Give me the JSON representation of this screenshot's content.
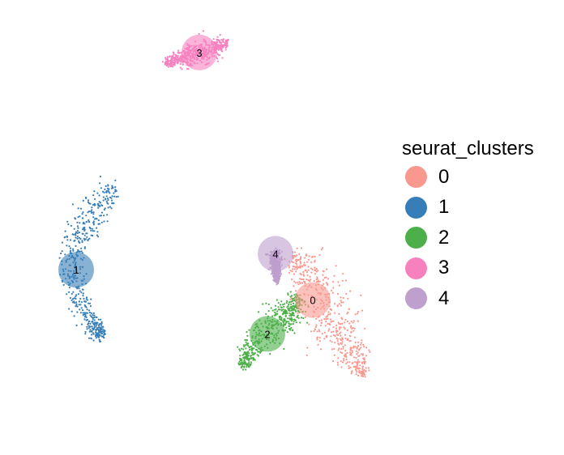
{
  "chart_data": {
    "type": "scatter",
    "title": "",
    "xlabel": "",
    "ylabel": "",
    "axes_visible": false,
    "grid": false,
    "legend_placement": "right",
    "legend": {
      "title": "seurat_clusters",
      "items": [
        {
          "label": "0",
          "color": "#F8988F"
        },
        {
          "label": "1",
          "color": "#377EB8"
        },
        {
          "label": "2",
          "color": "#4DAF4A"
        },
        {
          "label": "3",
          "color": "#F781BF"
        },
        {
          "label": "4",
          "color": "#BE9FCD"
        }
      ]
    },
    "clusters": [
      {
        "name": "0",
        "color": "#F8988F",
        "label_position": [
          4.4,
          -2.3
        ],
        "spine": [
          [
            3.1,
            0.1
          ],
          [
            4.4,
            -0.9
          ],
          [
            5.4,
            -3.1
          ],
          [
            6.5,
            -4.9
          ],
          [
            7.6,
            -6.5
          ]
        ],
        "spread": [
          0.55,
          1.45,
          1.65,
          1.2,
          0.35
        ]
      },
      {
        "name": "1",
        "color": "#377EB8",
        "label_position": [
          -10.2,
          -0.6
        ],
        "spine": [
          [
            -7.8,
            4.0
          ],
          [
            -9.3,
            2.6
          ],
          [
            -10.5,
            0.5
          ],
          [
            -10.3,
            -1.6
          ],
          [
            -9.3,
            -3.6
          ],
          [
            -8.6,
            -4.4
          ]
        ],
        "spread": [
          0.7,
          1.0,
          0.8,
          0.75,
          0.6,
          0.45
        ]
      },
      {
        "name": "2",
        "color": "#4DAF4A",
        "label_position": [
          1.6,
          -4.2
        ],
        "spine": [
          [
            3.6,
            -2.1
          ],
          [
            3.0,
            -3.1
          ],
          [
            1.8,
            -4.0
          ],
          [
            0.5,
            -5.0
          ],
          [
            0.1,
            -6.1
          ]
        ],
        "spread": [
          0.55,
          0.85,
          1.0,
          0.6,
          0.45
        ]
      },
      {
        "name": "3",
        "color": "#F781BF",
        "label_position": [
          -2.6,
          11.6
        ],
        "spine": [
          [
            -4.7,
            11.0
          ],
          [
            -3.4,
            11.35
          ],
          [
            -2.1,
            11.7
          ],
          [
            -0.9,
            12.15
          ]
        ],
        "spread": [
          0.2,
          0.55,
          0.6,
          0.3
        ]
      },
      {
        "name": "4",
        "color": "#BE9FCD",
        "label_position": [
          2.1,
          0.3
        ],
        "spine": [
          [
            2.1,
            0.4
          ],
          [
            2.1,
            -0.5
          ],
          [
            2.2,
            -1.2
          ]
        ],
        "spread": [
          0.4,
          0.3,
          0.15
        ]
      }
    ]
  }
}
